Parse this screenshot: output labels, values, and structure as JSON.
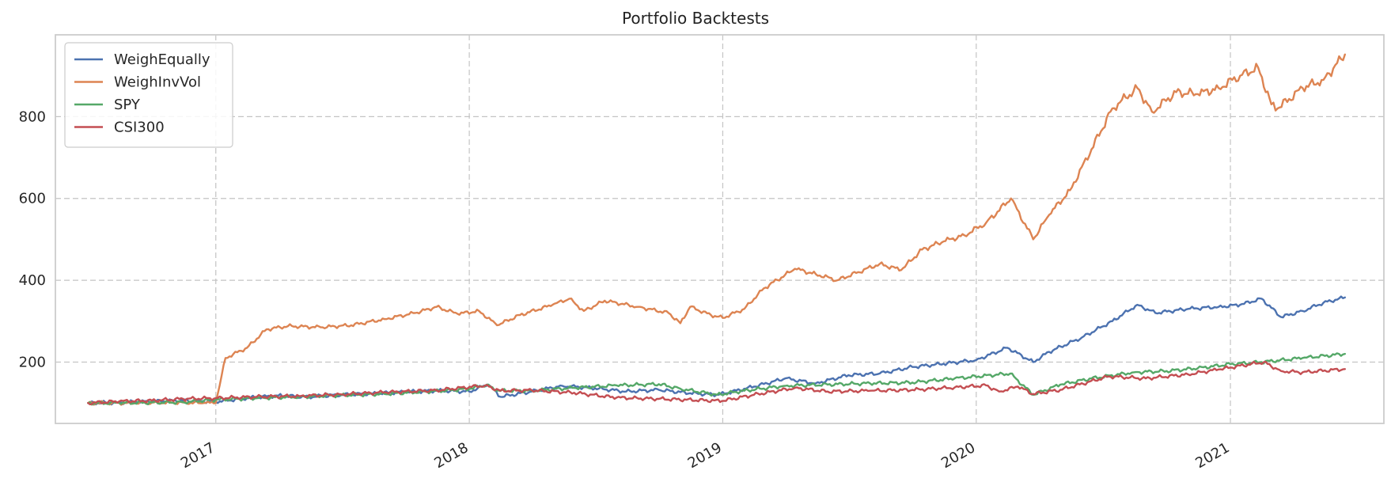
{
  "chart_data": {
    "type": "line",
    "title": "Portfolio Backtests",
    "xlabel": "",
    "ylabel": "",
    "xlim": [
      "2016-05-15",
      "2021-08-10"
    ],
    "ylim": [
      50,
      1000
    ],
    "x_ticks": [
      "2017",
      "2018",
      "2019",
      "2020",
      "2021"
    ],
    "y_ticks": [
      200,
      400,
      600,
      800
    ],
    "grid": true,
    "legend_position": "top-left",
    "series": [
      {
        "name": "WeighEqually",
        "color": "#4c72b0",
        "points": [
          [
            "2016-07-01",
            100
          ],
          [
            "2016-08-15",
            101
          ],
          [
            "2016-10-01",
            104
          ],
          [
            "2016-11-15",
            106
          ],
          [
            "2017-01-01",
            103
          ],
          [
            "2017-02-15",
            112
          ],
          [
            "2017-04-01",
            118
          ],
          [
            "2017-05-15",
            115
          ],
          [
            "2017-07-01",
            120
          ],
          [
            "2017-08-15",
            123
          ],
          [
            "2017-10-01",
            127
          ],
          [
            "2017-11-15",
            130
          ],
          [
            "2018-01-01",
            128
          ],
          [
            "2018-01-28",
            145
          ],
          [
            "2018-02-15",
            115
          ],
          [
            "2018-04-01",
            128
          ],
          [
            "2018-05-15",
            142
          ],
          [
            "2018-07-01",
            136
          ],
          [
            "2018-08-15",
            128
          ],
          [
            "2018-10-01",
            132
          ],
          [
            "2018-11-15",
            124
          ],
          [
            "2018-12-26",
            120
          ],
          [
            "2019-02-15",
            140
          ],
          [
            "2019-04-01",
            160
          ],
          [
            "2019-05-15",
            148
          ],
          [
            "2019-07-01",
            168
          ],
          [
            "2019-08-15",
            172
          ],
          [
            "2019-10-01",
            188
          ],
          [
            "2019-11-15",
            196
          ],
          [
            "2020-01-01",
            205
          ],
          [
            "2020-02-15",
            235
          ],
          [
            "2020-03-23",
            200
          ],
          [
            "2020-04-15",
            225
          ],
          [
            "2020-06-01",
            260
          ],
          [
            "2020-07-15",
            300
          ],
          [
            "2020-08-20",
            340
          ],
          [
            "2020-09-15",
            320
          ],
          [
            "2020-11-01",
            330
          ],
          [
            "2020-12-15",
            335
          ],
          [
            "2021-01-15",
            340
          ],
          [
            "2021-02-15",
            355
          ],
          [
            "2021-03-15",
            310
          ],
          [
            "2021-04-15",
            325
          ],
          [
            "2021-05-15",
            345
          ],
          [
            "2021-06-15",
            358
          ]
        ]
      },
      {
        "name": "WeighInvVol",
        "color": "#dd8452",
        "points": [
          [
            "2016-07-01",
            100
          ],
          [
            "2016-08-15",
            100
          ],
          [
            "2016-10-01",
            101
          ],
          [
            "2016-11-15",
            101
          ],
          [
            "2016-12-15",
            100
          ],
          [
            "2017-01-01",
            100
          ],
          [
            "2017-01-15",
            210
          ],
          [
            "2017-02-15",
            235
          ],
          [
            "2017-03-15",
            280
          ],
          [
            "2017-04-15",
            288
          ],
          [
            "2017-06-01",
            285
          ],
          [
            "2017-07-15",
            290
          ],
          [
            "2017-09-01",
            305
          ],
          [
            "2017-10-15",
            320
          ],
          [
            "2017-11-15",
            335
          ],
          [
            "2017-12-15",
            318
          ],
          [
            "2018-01-15",
            325
          ],
          [
            "2018-02-10",
            290
          ],
          [
            "2018-03-15",
            315
          ],
          [
            "2018-05-01",
            340
          ],
          [
            "2018-05-25",
            355
          ],
          [
            "2018-06-15",
            325
          ],
          [
            "2018-07-15",
            350
          ],
          [
            "2018-09-01",
            335
          ],
          [
            "2018-10-15",
            320
          ],
          [
            "2018-11-01",
            295
          ],
          [
            "2018-11-15",
            335
          ],
          [
            "2018-12-15",
            315
          ],
          [
            "2019-01-01",
            308
          ],
          [
            "2019-02-01",
            330
          ],
          [
            "2019-03-01",
            380
          ],
          [
            "2019-04-15",
            428
          ],
          [
            "2019-05-15",
            415
          ],
          [
            "2019-06-15",
            400
          ],
          [
            "2019-07-15",
            420
          ],
          [
            "2019-08-15",
            440
          ],
          [
            "2019-09-15",
            425
          ],
          [
            "2019-10-15",
            475
          ],
          [
            "2019-11-15",
            495
          ],
          [
            "2019-12-15",
            510
          ],
          [
            "2020-01-15",
            540
          ],
          [
            "2020-02-20",
            600
          ],
          [
            "2020-03-23",
            500
          ],
          [
            "2020-04-15",
            560
          ],
          [
            "2020-05-15",
            620
          ],
          [
            "2020-06-15",
            720
          ],
          [
            "2020-07-15",
            820
          ],
          [
            "2020-08-20",
            870
          ],
          [
            "2020-09-10",
            812
          ],
          [
            "2020-10-15",
            860
          ],
          [
            "2020-11-15",
            855
          ],
          [
            "2020-12-15",
            870
          ],
          [
            "2021-01-15",
            900
          ],
          [
            "2021-02-10",
            920
          ],
          [
            "2021-03-01",
            830
          ],
          [
            "2021-03-10",
            820
          ],
          [
            "2021-04-15",
            870
          ],
          [
            "2021-05-15",
            890
          ],
          [
            "2021-06-15",
            952
          ]
        ]
      },
      {
        "name": "SPY",
        "color": "#55a868",
        "points": [
          [
            "2016-07-01",
            100
          ],
          [
            "2016-08-15",
            100
          ],
          [
            "2016-10-01",
            101
          ],
          [
            "2016-11-15",
            102
          ],
          [
            "2017-01-01",
            108
          ],
          [
            "2017-03-01",
            112
          ],
          [
            "2017-05-01",
            115
          ],
          [
            "2017-07-01",
            119
          ],
          [
            "2017-09-01",
            122
          ],
          [
            "2017-11-01",
            128
          ],
          [
            "2018-01-01",
            134
          ],
          [
            "2018-01-26",
            145
          ],
          [
            "2018-02-09",
            130
          ],
          [
            "2018-04-01",
            130
          ],
          [
            "2018-06-01",
            137
          ],
          [
            "2018-08-01",
            143
          ],
          [
            "2018-10-01",
            146
          ],
          [
            "2018-11-01",
            135
          ],
          [
            "2018-12-24",
            120
          ],
          [
            "2019-02-01",
            130
          ],
          [
            "2019-04-01",
            142
          ],
          [
            "2019-06-01",
            145
          ],
          [
            "2019-08-01",
            148
          ],
          [
            "2019-10-01",
            150
          ],
          [
            "2019-12-01",
            160
          ],
          [
            "2020-02-19",
            172
          ],
          [
            "2020-03-23",
            120
          ],
          [
            "2020-05-01",
            145
          ],
          [
            "2020-06-15",
            160
          ],
          [
            "2020-08-15",
            175
          ],
          [
            "2020-10-01",
            178
          ],
          [
            "2020-11-15",
            185
          ],
          [
            "2021-01-01",
            195
          ],
          [
            "2021-02-15",
            200
          ],
          [
            "2021-04-15",
            210
          ],
          [
            "2021-06-15",
            220
          ]
        ]
      },
      {
        "name": "CSI300",
        "color": "#c44e52",
        "points": [
          [
            "2016-07-01",
            100
          ],
          [
            "2016-08-15",
            104
          ],
          [
            "2016-10-01",
            106
          ],
          [
            "2016-11-15",
            110
          ],
          [
            "2017-01-01",
            112
          ],
          [
            "2017-03-01",
            115
          ],
          [
            "2017-05-01",
            117
          ],
          [
            "2017-07-01",
            121
          ],
          [
            "2017-09-01",
            126
          ],
          [
            "2017-11-15",
            131
          ],
          [
            "2018-01-24",
            143
          ],
          [
            "2018-02-15",
            130
          ],
          [
            "2018-04-01",
            131
          ],
          [
            "2018-06-01",
            125
          ],
          [
            "2018-08-01",
            113
          ],
          [
            "2018-10-01",
            110
          ],
          [
            "2018-12-31",
            105
          ],
          [
            "2019-02-15",
            120
          ],
          [
            "2019-04-15",
            137
          ],
          [
            "2019-06-01",
            128
          ],
          [
            "2019-08-01",
            130
          ],
          [
            "2019-10-01",
            132
          ],
          [
            "2019-12-01",
            138
          ],
          [
            "2020-01-15",
            143
          ],
          [
            "2020-02-03",
            128
          ],
          [
            "2020-03-01",
            140
          ],
          [
            "2020-03-23",
            122
          ],
          [
            "2020-05-01",
            132
          ],
          [
            "2020-07-10",
            165
          ],
          [
            "2020-09-01",
            160
          ],
          [
            "2020-11-01",
            170
          ],
          [
            "2020-12-15",
            182
          ],
          [
            "2021-02-18",
            200
          ],
          [
            "2021-03-15",
            178
          ],
          [
            "2021-04-15",
            175
          ],
          [
            "2021-06-15",
            183
          ]
        ]
      }
    ]
  }
}
